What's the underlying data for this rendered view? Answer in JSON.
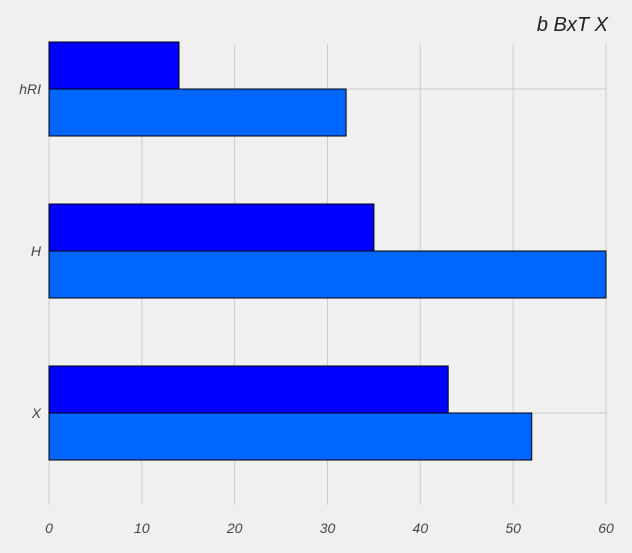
{
  "chart_data": {
    "type": "bar",
    "orientation": "horizontal",
    "title": "b BxT X",
    "categories": [
      "X",
      "H",
      "hRI"
    ],
    "series": [
      {
        "values": [
          52,
          60,
          32
        ],
        "color": "#0066ff"
      },
      {
        "values": [
          43,
          35,
          14
        ],
        "color": "#0000ff"
      }
    ],
    "xlim": [
      0,
      60
    ],
    "xticks": [
      0,
      10,
      20,
      30,
      40,
      50,
      60
    ],
    "grid": true,
    "background": "#f0f0f0"
  }
}
